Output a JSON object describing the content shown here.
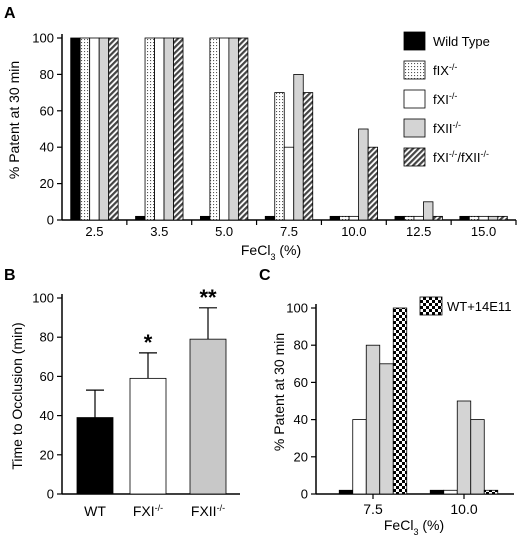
{
  "panels": {
    "a": "A",
    "b": "B",
    "c": "C"
  },
  "chart_data": [
    {
      "panel": "A",
      "type": "bar",
      "ylabel": "% Patent at 30 min",
      "xlabel": "FeCl3 (%)",
      "xlabel_main": "FeCl",
      "xlabel_sub": "3",
      "xlabel_tail": " (%)",
      "ylim": [
        0,
        100
      ],
      "yticks": [
        "0",
        "20",
        "40",
        "60",
        "80",
        "100"
      ],
      "categories": [
        "2.5",
        "3.5",
        "5.0",
        "7.5",
        "10.0",
        "12.5",
        "15.0"
      ],
      "series": [
        {
          "name": "Wild Type",
          "base": "Wild Type",
          "sup": "",
          "pattern": "black",
          "values": [
            100,
            2,
            2,
            2,
            2,
            2,
            2
          ]
        },
        {
          "name": "fIX-/-",
          "base": "fIX",
          "sup": "-/-",
          "pattern": "dots",
          "values": [
            100,
            100,
            100,
            70,
            2,
            2,
            2
          ]
        },
        {
          "name": "fXI-/-",
          "base": "fXI",
          "sup": "-/-",
          "pattern": "white",
          "values": [
            100,
            100,
            100,
            40,
            2,
            2,
            2
          ]
        },
        {
          "name": "fXII-/-",
          "base": "fXII",
          "sup": "-/-",
          "pattern": "gray",
          "values": [
            100,
            100,
            100,
            80,
            50,
            10,
            2
          ]
        },
        {
          "name": "fXI-/-/fXII-/-",
          "base": "fXI",
          "sup": "-/-",
          "base2": "/fXII",
          "sup2": "-/-",
          "pattern": "hatch",
          "values": [
            100,
            100,
            100,
            70,
            40,
            2,
            2
          ]
        }
      ],
      "legend_position": "top-right"
    },
    {
      "panel": "B",
      "type": "bar",
      "ylabel": "Time to Occlusion (min)",
      "ylim": [
        0,
        100
      ],
      "yticks": [
        "0",
        "20",
        "40",
        "60",
        "80",
        "100"
      ],
      "categories": [
        {
          "label": "WT",
          "base": "WT",
          "sup": ""
        },
        {
          "label": "FXI-/-",
          "base": "FXI",
          "sup": "-/-"
        },
        {
          "label": "FXII-/-",
          "base": "FXII",
          "sup": "-/-"
        }
      ],
      "values": [
        39,
        59,
        79
      ],
      "error_upper": [
        53,
        72,
        95
      ],
      "significance": [
        "",
        "*",
        "**"
      ],
      "colors": [
        "#000000",
        "#ffffff",
        "#c8c8c8"
      ]
    },
    {
      "panel": "C",
      "type": "bar",
      "ylabel": "% Patent at 30 min",
      "xlabel_main": "FeCl",
      "xlabel_sub": "3",
      "xlabel_tail": " (%)",
      "ylim": [
        0,
        100
      ],
      "yticks": [
        "0",
        "20",
        "40",
        "60",
        "80",
        "100"
      ],
      "categories": [
        "7.5",
        "10.0"
      ],
      "series": [
        {
          "name": "Wild Type",
          "pattern": "black",
          "values": [
            2,
            2
          ]
        },
        {
          "name": "fXI-/-",
          "pattern": "white",
          "values": [
            40,
            2
          ]
        },
        {
          "name": "fXII-/-",
          "pattern": "gray",
          "values": [
            80,
            50
          ]
        },
        {
          "name": "fXI-/-/fXII-/-",
          "pattern": "gray",
          "values": [
            70,
            40
          ]
        },
        {
          "name": "WT+14E11",
          "pattern": "checker",
          "values": [
            100,
            2
          ]
        }
      ],
      "legend_label": "WT+14E11",
      "legend_position": "top-right"
    }
  ]
}
